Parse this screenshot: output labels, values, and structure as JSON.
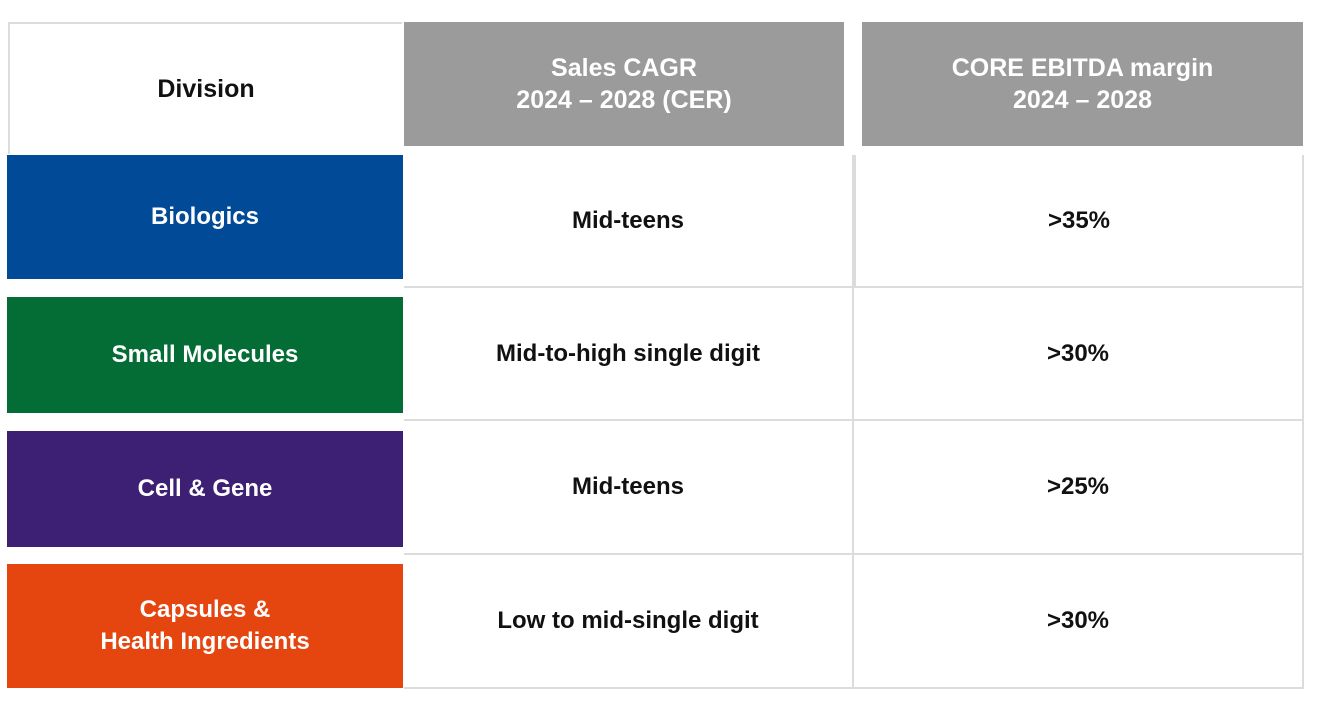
{
  "header": {
    "division": "Division",
    "sales_cagr": "Sales CAGR\n2024 – 2028 (CER)",
    "ebitda_margin": "CORE EBITDA margin\n2024 – 2028"
  },
  "rows": [
    {
      "division": "Biologics",
      "sales_cagr": "Mid-teens",
      "ebitda_margin": ">35%",
      "color": "#004a97"
    },
    {
      "division": "Small Molecules",
      "sales_cagr": "Mid-to-high single digit",
      "ebitda_margin": ">30%",
      "color": "#036d35"
    },
    {
      "division": "Cell & Gene",
      "sales_cagr": "Mid-teens",
      "ebitda_margin": ">25%",
      "color": "#3d2073"
    },
    {
      "division": "Capsules &\nHealth Ingredients",
      "sales_cagr": "Low to mid-single digit",
      "ebitda_margin": ">30%",
      "color": "#e5450f"
    }
  ],
  "colors": {
    "header_grey": "#9b9b9b",
    "grid_line": "#dcdcdc"
  }
}
